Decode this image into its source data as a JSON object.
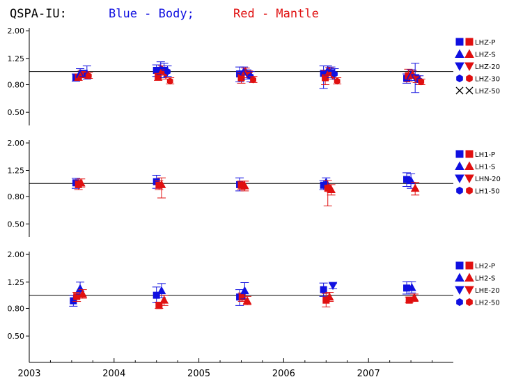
{
  "title": {
    "station": "QSPA-IU:",
    "blue_text": "Blue - Body;",
    "red_text": "Red - Mantle",
    "blue_color": "#1010e0",
    "red_color": "#e01010"
  },
  "colors": {
    "blue": "#1010e0",
    "red": "#e01010",
    "black": "#000000"
  },
  "chart_data": {
    "type": "scatter",
    "x_axis": {
      "ticks": [
        "2003",
        "2004",
        "2005",
        "2006",
        "2007"
      ],
      "range": [
        2003.0,
        2008.0
      ]
    },
    "y_axis": {
      "ticks": [
        "2.00",
        "1.25",
        "0.80",
        "0.50"
      ],
      "scale": "log",
      "range": [
        0.4,
        2.1
      ]
    },
    "reference_line": 1.0,
    "panels": [
      {
        "legend": [
          {
            "marker": "square",
            "label": "LHZ-P"
          },
          {
            "marker": "triangle-up",
            "label": "LHZ-S"
          },
          {
            "marker": "triangle-down",
            "label": "LHZ-20"
          },
          {
            "marker": "hexagon",
            "label": "LHZ-30"
          },
          {
            "marker": "cross",
            "label": "LHZ-50"
          }
        ],
        "points": [
          {
            "x": 2003.55,
            "y": 0.9,
            "lo": 0.85,
            "hi": 0.96,
            "c": "blue",
            "m": "square"
          },
          {
            "x": 2003.58,
            "y": 0.91,
            "lo": 0.86,
            "hi": 0.96,
            "c": "red",
            "m": "square"
          },
          {
            "x": 2003.6,
            "y": 0.97,
            "lo": 0.9,
            "hi": 1.05,
            "c": "blue",
            "m": "triangle-up"
          },
          {
            "x": 2003.62,
            "y": 0.96,
            "lo": 0.9,
            "hi": 1.02,
            "c": "red",
            "m": "triangle-up"
          },
          {
            "x": 2003.64,
            "y": 0.97,
            "lo": 0.92,
            "hi": 1.02,
            "c": "blue",
            "m": "triangle-down"
          },
          {
            "x": 2003.66,
            "y": 0.95,
            "lo": 0.9,
            "hi": 1.0,
            "c": "red",
            "m": "triangle-down"
          },
          {
            "x": 2003.68,
            "y": 0.95,
            "lo": 0.88,
            "hi": 1.1,
            "c": "blue",
            "m": "hexagon"
          },
          {
            "x": 2003.7,
            "y": 0.93,
            "lo": 0.89,
            "hi": 0.98,
            "c": "red",
            "m": "hexagon"
          },
          {
            "x": 2004.5,
            "y": 1.02,
            "lo": 0.92,
            "hi": 1.12,
            "c": "blue",
            "m": "square"
          },
          {
            "x": 2004.52,
            "y": 0.91,
            "lo": 0.86,
            "hi": 0.97,
            "c": "red",
            "m": "square"
          },
          {
            "x": 2004.55,
            "y": 1.05,
            "lo": 0.95,
            "hi": 1.18,
            "c": "blue",
            "m": "triangle-up"
          },
          {
            "x": 2004.57,
            "y": 1.02,
            "lo": 0.94,
            "hi": 1.1,
            "c": "red",
            "m": "triangle-up"
          },
          {
            "x": 2004.59,
            "y": 1.02,
            "lo": 0.9,
            "hi": 1.15,
            "c": "blue",
            "m": "triangle-down"
          },
          {
            "x": 2004.61,
            "y": 0.95,
            "lo": 0.88,
            "hi": 1.03,
            "c": "red",
            "m": "triangle-down"
          },
          {
            "x": 2004.63,
            "y": 1.0,
            "lo": 0.92,
            "hi": 1.1,
            "c": "blue",
            "m": "hexagon"
          },
          {
            "x": 2004.66,
            "y": 0.85,
            "lo": 0.81,
            "hi": 0.9,
            "c": "red",
            "m": "hexagon"
          },
          {
            "x": 2005.48,
            "y": 0.96,
            "lo": 0.84,
            "hi": 1.08,
            "c": "blue",
            "m": "square"
          },
          {
            "x": 2005.5,
            "y": 0.9,
            "lo": 0.82,
            "hi": 0.98,
            "c": "red",
            "m": "square"
          },
          {
            "x": 2005.53,
            "y": 1.0,
            "lo": 0.94,
            "hi": 1.08,
            "c": "blue",
            "m": "triangle-up"
          },
          {
            "x": 2005.55,
            "y": 1.0,
            "lo": 0.95,
            "hi": 1.06,
            "c": "red",
            "m": "triangle-up"
          },
          {
            "x": 2005.57,
            "y": 0.96,
            "lo": 0.88,
            "hi": 1.03,
            "c": "blue",
            "m": "triangle-down"
          },
          {
            "x": 2005.59,
            "y": 0.95,
            "lo": 0.9,
            "hi": 1.01,
            "c": "red",
            "m": "triangle-down"
          },
          {
            "x": 2005.61,
            "y": 0.92,
            "lo": 0.84,
            "hi": 1.0,
            "c": "blue",
            "m": "hexagon"
          },
          {
            "x": 2005.64,
            "y": 0.87,
            "lo": 0.83,
            "hi": 0.92,
            "c": "red",
            "m": "hexagon"
          },
          {
            "x": 2006.47,
            "y": 0.97,
            "lo": 0.75,
            "hi": 1.1,
            "c": "blue",
            "m": "square"
          },
          {
            "x": 2006.49,
            "y": 0.9,
            "lo": 0.8,
            "hi": 1.02,
            "c": "red",
            "m": "square"
          },
          {
            "x": 2006.52,
            "y": 1.02,
            "lo": 0.94,
            "hi": 1.1,
            "c": "blue",
            "m": "triangle-up"
          },
          {
            "x": 2006.54,
            "y": 1.0,
            "lo": 0.93,
            "hi": 1.07,
            "c": "red",
            "m": "triangle-up"
          },
          {
            "x": 2006.56,
            "y": 0.98,
            "lo": 0.9,
            "hi": 1.08,
            "c": "blue",
            "m": "triangle-down"
          },
          {
            "x": 2006.58,
            "y": 0.93,
            "lo": 0.88,
            "hi": 0.99,
            "c": "red",
            "m": "triangle-down"
          },
          {
            "x": 2006.6,
            "y": 0.96,
            "lo": 0.88,
            "hi": 1.05,
            "c": "blue",
            "m": "hexagon"
          },
          {
            "x": 2006.63,
            "y": 0.85,
            "lo": 0.81,
            "hi": 0.9,
            "c": "red",
            "m": "hexagon"
          },
          {
            "x": 2007.45,
            "y": 0.89,
            "lo": 0.82,
            "hi": 0.96,
            "c": "blue",
            "m": "square"
          },
          {
            "x": 2007.47,
            "y": 0.93,
            "lo": 0.84,
            "hi": 1.04,
            "c": "red",
            "m": "square"
          },
          {
            "x": 2007.5,
            "y": 0.94,
            "lo": 0.86,
            "hi": 1.03,
            "c": "blue",
            "m": "triangle-up"
          },
          {
            "x": 2007.52,
            "y": 0.95,
            "lo": 0.89,
            "hi": 1.02,
            "c": "red",
            "m": "triangle-up"
          },
          {
            "x": 2007.55,
            "y": 0.9,
            "lo": 0.7,
            "hi": 1.15,
            "c": "blue",
            "m": "triangle-down"
          },
          {
            "x": 2007.57,
            "y": 0.88,
            "lo": 0.83,
            "hi": 0.93,
            "c": "red",
            "m": "triangle-down"
          },
          {
            "x": 2007.6,
            "y": 0.86,
            "lo": 0.8,
            "hi": 0.93,
            "c": "blue",
            "m": "hexagon"
          },
          {
            "x": 2007.62,
            "y": 0.84,
            "lo": 0.8,
            "hi": 0.88,
            "c": "red",
            "m": "hexagon"
          }
        ]
      },
      {
        "legend": [
          {
            "marker": "square",
            "label": "LH1-P"
          },
          {
            "marker": "triangle-up",
            "label": "LH1-S"
          },
          {
            "marker": "triangle-down",
            "label": "LHN-20"
          },
          {
            "marker": "hexagon",
            "label": "LH1-50"
          }
        ],
        "points": [
          {
            "x": 2003.55,
            "y": 1.01,
            "lo": 0.92,
            "hi": 1.09,
            "c": "blue",
            "m": "square"
          },
          {
            "x": 2003.58,
            "y": 0.98,
            "lo": 0.9,
            "hi": 1.06,
            "c": "red",
            "m": "square"
          },
          {
            "x": 2003.61,
            "y": 1.01,
            "lo": 0.94,
            "hi": 1.08,
            "c": "red",
            "m": "triangle-up"
          },
          {
            "x": 2004.5,
            "y": 1.03,
            "lo": 0.92,
            "hi": 1.15,
            "c": "blue",
            "m": "square"
          },
          {
            "x": 2004.53,
            "y": 0.97,
            "lo": 0.9,
            "hi": 1.05,
            "c": "red",
            "m": "square"
          },
          {
            "x": 2004.56,
            "y": 0.98,
            "lo": 0.78,
            "hi": 1.1,
            "c": "red",
            "m": "triangle-up"
          },
          {
            "x": 2005.48,
            "y": 0.98,
            "lo": 0.88,
            "hi": 1.1,
            "c": "blue",
            "m": "square"
          },
          {
            "x": 2005.5,
            "y": 0.97,
            "lo": 0.9,
            "hi": 1.04,
            "c": "red",
            "m": "square"
          },
          {
            "x": 2005.54,
            "y": 0.96,
            "lo": 0.88,
            "hi": 1.04,
            "c": "red",
            "m": "triangle-up"
          },
          {
            "x": 2006.47,
            "y": 0.97,
            "lo": 0.9,
            "hi": 1.05,
            "c": "blue",
            "m": "square"
          },
          {
            "x": 2006.5,
            "y": 1.02,
            "lo": 0.94,
            "hi": 1.1,
            "c": "blue",
            "m": "triangle-up"
          },
          {
            "x": 2006.52,
            "y": 0.92,
            "lo": 0.68,
            "hi": 1.05,
            "c": "red",
            "m": "square"
          },
          {
            "x": 2006.56,
            "y": 0.9,
            "lo": 0.82,
            "hi": 0.98,
            "c": "red",
            "m": "triangle-up"
          },
          {
            "x": 2007.45,
            "y": 1.07,
            "lo": 0.95,
            "hi": 1.2,
            "c": "blue",
            "m": "square"
          },
          {
            "x": 2007.5,
            "y": 1.05,
            "lo": 0.92,
            "hi": 1.18,
            "c": "blue",
            "m": "triangle-up"
          },
          {
            "x": 2007.55,
            "y": 0.92,
            "lo": 0.82,
            "hi": 1.02,
            "c": "red",
            "m": "triangle-up"
          }
        ]
      },
      {
        "legend": [
          {
            "marker": "square",
            "label": "LH2-P"
          },
          {
            "marker": "triangle-up",
            "label": "LH2-S"
          },
          {
            "marker": "triangle-down",
            "label": "LHE-20"
          },
          {
            "marker": "hexagon",
            "label": "LH2-50"
          }
        ],
        "points": [
          {
            "x": 2003.52,
            "y": 0.91,
            "lo": 0.83,
            "hi": 1.0,
            "c": "blue",
            "m": "square"
          },
          {
            "x": 2003.56,
            "y": 0.98,
            "lo": 0.9,
            "hi": 1.05,
            "c": "red",
            "m": "square"
          },
          {
            "x": 2003.6,
            "y": 1.12,
            "lo": 1.02,
            "hi": 1.25,
            "c": "blue",
            "m": "triangle-up"
          },
          {
            "x": 2003.63,
            "y": 1.02,
            "lo": 0.95,
            "hi": 1.1,
            "c": "red",
            "m": "triangle-up"
          },
          {
            "x": 2004.5,
            "y": 1.0,
            "lo": 0.88,
            "hi": 1.15,
            "c": "blue",
            "m": "square"
          },
          {
            "x": 2004.53,
            "y": 0.84,
            "lo": 0.8,
            "hi": 0.89,
            "c": "red",
            "m": "square"
          },
          {
            "x": 2004.56,
            "y": 1.08,
            "lo": 0.96,
            "hi": 1.22,
            "c": "blue",
            "m": "triangle-up"
          },
          {
            "x": 2004.59,
            "y": 0.92,
            "lo": 0.84,
            "hi": 1.0,
            "c": "red",
            "m": "triangle-up"
          },
          {
            "x": 2005.48,
            "y": 0.97,
            "lo": 0.84,
            "hi": 1.1,
            "c": "blue",
            "m": "square"
          },
          {
            "x": 2005.51,
            "y": 0.97,
            "lo": 0.9,
            "hi": 1.04,
            "c": "red",
            "m": "square"
          },
          {
            "x": 2005.54,
            "y": 1.08,
            "lo": 0.94,
            "hi": 1.24,
            "c": "blue",
            "m": "triangle-up"
          },
          {
            "x": 2005.57,
            "y": 0.91,
            "lo": 0.85,
            "hi": 0.98,
            "c": "red",
            "m": "triangle-up"
          },
          {
            "x": 2006.47,
            "y": 1.1,
            "lo": 0.98,
            "hi": 1.23,
            "c": "blue",
            "m": "square"
          },
          {
            "x": 2006.5,
            "y": 0.92,
            "lo": 0.82,
            "hi": 1.03,
            "c": "red",
            "m": "square"
          },
          {
            "x": 2006.54,
            "y": 0.97,
            "lo": 0.9,
            "hi": 1.05,
            "c": "red",
            "m": "triangle-up"
          },
          {
            "x": 2006.58,
            "y": 1.18,
            "lo": 1.12,
            "hi": 1.22,
            "c": "blue",
            "m": "triangle-down"
          },
          {
            "x": 2007.45,
            "y": 1.13,
            "lo": 1.02,
            "hi": 1.26,
            "c": "blue",
            "m": "square"
          },
          {
            "x": 2007.48,
            "y": 0.92,
            "lo": 0.88,
            "hi": 0.97,
            "c": "red",
            "m": "square"
          },
          {
            "x": 2007.51,
            "y": 1.14,
            "lo": 1.04,
            "hi": 1.26,
            "c": "blue",
            "m": "triangle-up"
          },
          {
            "x": 2007.54,
            "y": 0.96,
            "lo": 0.9,
            "hi": 1.02,
            "c": "red",
            "m": "triangle-up"
          }
        ]
      }
    ]
  }
}
